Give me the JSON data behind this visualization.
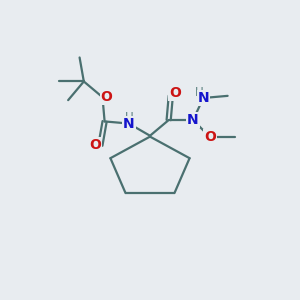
{
  "background_color": "#e8ecf0",
  "bond_color": "#4a7070",
  "N_color": "#1414cc",
  "O_color": "#cc1414",
  "H_color": "#5a8080",
  "figsize": [
    3.0,
    3.0
  ],
  "dpi": 100,
  "bond_lw": 1.6,
  "fs_heavy": 10,
  "fs_small": 8.5,
  "xlim": [
    0.0,
    1.0
  ],
  "ylim": [
    0.15,
    0.85
  ]
}
